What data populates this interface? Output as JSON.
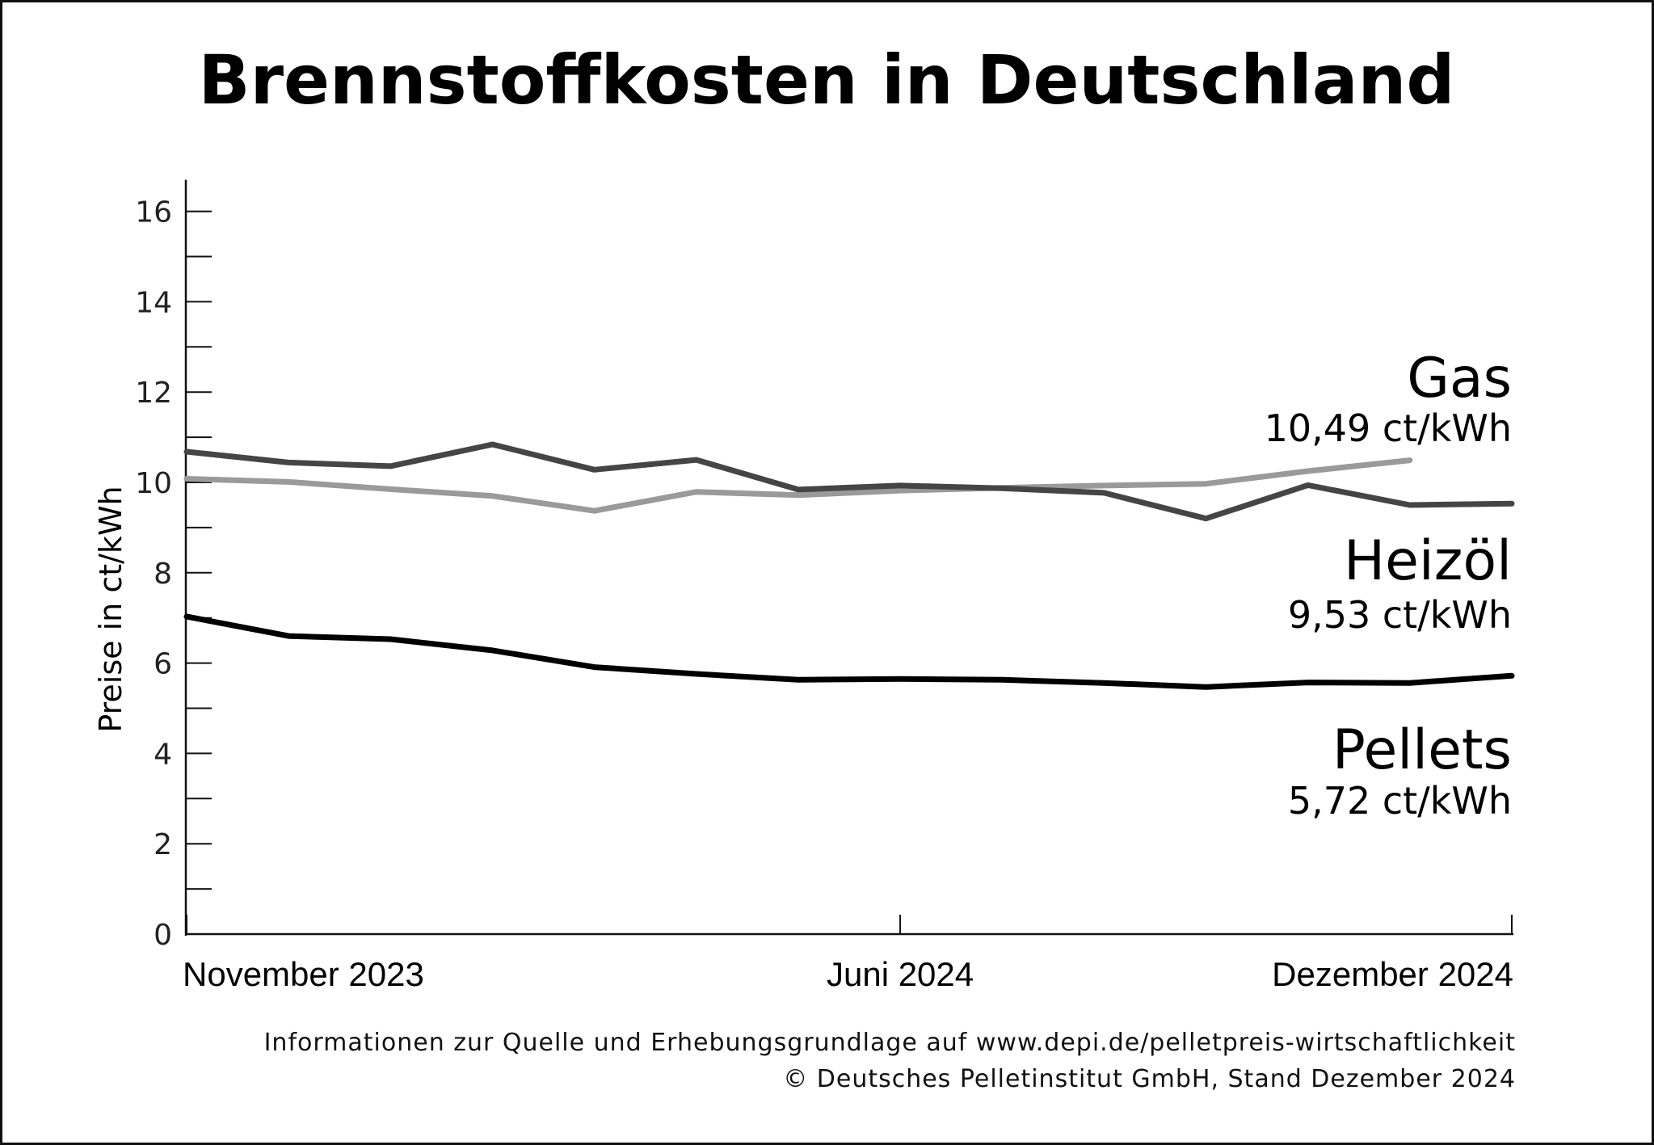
{
  "chart_data": {
    "type": "line",
    "title": "Brennstoffkosten in Deutschland",
    "ylabel": "Preise in ct/kWh",
    "xlabel": "",
    "ylim": [
      0,
      16.7
    ],
    "yticks": [
      "0",
      "2",
      "4",
      "6",
      "8",
      "10",
      "12",
      "14",
      "16"
    ],
    "x": [
      "Nov 2023",
      "Dez 2023",
      "Jan 2024",
      "Feb 2024",
      "Mär 2024",
      "Apr 2024",
      "Mai 2024",
      "Jun 2024",
      "Jul 2024",
      "Aug 2024",
      "Sep 2024",
      "Okt 2024",
      "Nov 2024",
      "Dez 2024"
    ],
    "xtick_labels": [
      {
        "label": "November 2023",
        "index": 0
      },
      {
        "label": "Juni 2024",
        "index": 7
      },
      {
        "label": "Dezember 2024",
        "index": 13
      }
    ],
    "series": [
      {
        "name": "Gas",
        "value_label": "10,49 ct/kWh",
        "color": "#9a9a9a",
        "values": [
          10.08,
          10.01,
          9.85,
          9.7,
          9.37,
          9.79,
          9.72,
          9.82,
          9.88,
          9.93,
          9.97,
          10.25,
          10.49,
          null
        ]
      },
      {
        "name": "Heizöl",
        "value_label": "9,53 ct/kWh",
        "color": "#454545",
        "values": [
          10.68,
          10.44,
          10.36,
          10.84,
          10.28,
          10.5,
          9.84,
          9.93,
          9.87,
          9.77,
          9.2,
          9.94,
          9.5,
          9.53
        ]
      },
      {
        "name": "Pellets",
        "value_label": "5,72 ct/kWh",
        "color": "#000000",
        "values": [
          7.03,
          6.6,
          6.53,
          6.28,
          5.91,
          5.76,
          5.63,
          5.65,
          5.63,
          5.56,
          5.47,
          5.57,
          5.56,
          5.72
        ]
      }
    ],
    "footer_line1": "Informationen zur Quelle und Erhebungsgrundlage auf www.depi.de/pelletpreis-wirtschaftlichkeit",
    "footer_line2": "© Deutsches Pelletinstitut GmbH, Stand Dezember 2024"
  }
}
